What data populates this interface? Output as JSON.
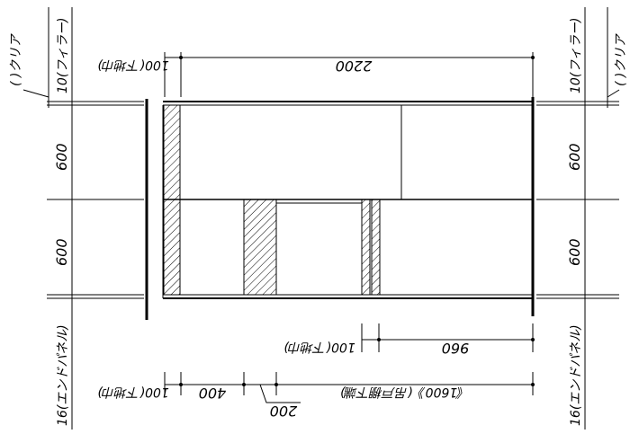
{
  "labels": {
    "left_top_clear": "( )クリア",
    "left_filler": "10(フィラー)",
    "left_600_upper": "600",
    "left_600_lower": "600",
    "left_end_panel": "16(エンドパネル)",
    "right_clear": "( )クリア",
    "right_filler": "10(フィラー)",
    "right_600_upper": "600",
    "right_600_lower": "600",
    "right_end_panel": "16(エンドパネル)",
    "top_100": "100(下地巾)",
    "top_2200": "2200",
    "mid_100": "100(下地巾)",
    "mid_960": "960",
    "bot_100": "100(下地巾)",
    "bot_400": "400",
    "bot_200": "200",
    "bot_1600": "《1600》(吊戸棚下端)"
  }
}
